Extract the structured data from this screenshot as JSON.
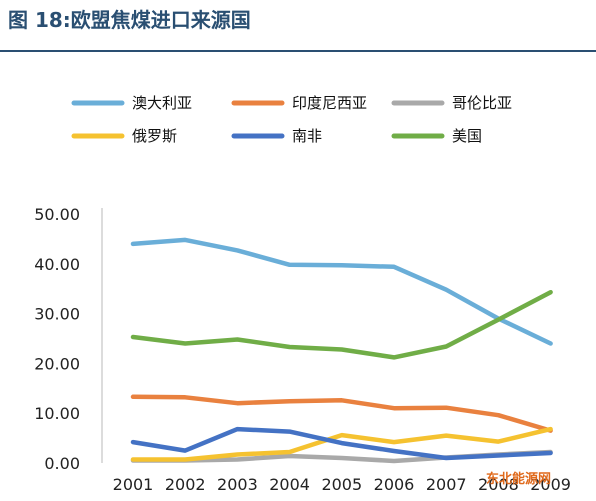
{
  "title": "图 18:欧盟焦煤进口来源国",
  "watermark": "东北能源网",
  "chart_data": {
    "type": "line",
    "title": "",
    "xlabel": "",
    "ylabel": "",
    "categories": [
      "2001",
      "2002",
      "2003",
      "2004",
      "2005",
      "2006",
      "2007",
      "2008",
      "2009"
    ],
    "ylim": [
      0,
      50
    ],
    "yticks": [
      "0.00",
      "10.00",
      "20.00",
      "30.00",
      "40.00",
      "50.00"
    ],
    "grid": false,
    "legend_position": "top",
    "series": [
      {
        "name": "澳大利亚",
        "color": "#6aaed8",
        "values": [
          44.0,
          44.8,
          42.7,
          39.8,
          39.7,
          39.4,
          34.8,
          29.0,
          24.0
        ]
      },
      {
        "name": "印度尼西亚",
        "color": "#e9813f",
        "values": [
          13.3,
          13.2,
          12.0,
          12.4,
          12.6,
          11.0,
          11.1,
          9.6,
          6.5
        ]
      },
      {
        "name": "哥伦比亚",
        "color": "#a9a9a9",
        "values": [
          0.5,
          0.5,
          0.7,
          1.4,
          1.0,
          0.4,
          1.1,
          1.7,
          2.2
        ]
      },
      {
        "name": "俄罗斯",
        "color": "#f5c230",
        "values": [
          0.7,
          0.7,
          1.7,
          2.2,
          5.6,
          4.2,
          5.5,
          4.3,
          6.8
        ]
      },
      {
        "name": "南非",
        "color": "#4472c4",
        "values": [
          4.2,
          2.5,
          6.8,
          6.3,
          4.0,
          2.4,
          1.0,
          1.5,
          2.0
        ]
      },
      {
        "name": "美国",
        "color": "#70ad47",
        "values": [
          25.3,
          24.0,
          24.8,
          23.3,
          22.8,
          21.2,
          23.4,
          28.8,
          34.3
        ]
      }
    ]
  }
}
